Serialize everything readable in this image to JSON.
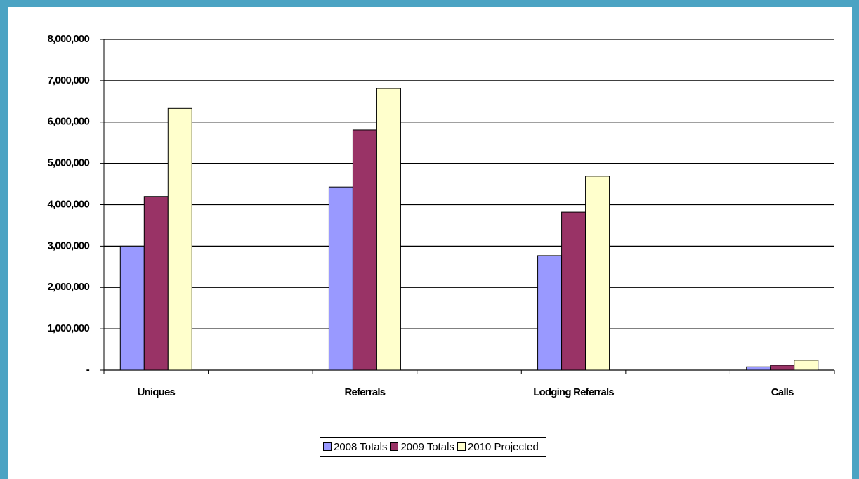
{
  "chart_data": {
    "type": "bar",
    "categories": [
      "Uniques",
      null,
      "Referrals",
      null,
      "Lodging Referrals",
      null,
      "Calls"
    ],
    "series": [
      {
        "name": "2008 Totals",
        "color": "#9999ff",
        "values": [
          3000000,
          null,
          4430000,
          null,
          2770000,
          null,
          80000
        ]
      },
      {
        "name": "2009 Totals",
        "color": "#993366",
        "values": [
          4200000,
          null,
          5810000,
          null,
          3820000,
          null,
          120000
        ]
      },
      {
        "name": "2010 Projected",
        "color": "#ffffcc",
        "values": [
          6330000,
          null,
          6810000,
          null,
          4690000,
          null,
          240000
        ]
      }
    ],
    "ylim": [
      0,
      8000000
    ],
    "yticks": [
      {
        "value": 0,
        "label": "-"
      },
      {
        "value": 1000000,
        "label": "1,000,000"
      },
      {
        "value": 2000000,
        "label": "2,000,000"
      },
      {
        "value": 3000000,
        "label": "3,000,000"
      },
      {
        "value": 4000000,
        "label": "4,000,000"
      },
      {
        "value": 5000000,
        "label": "5,000,000"
      },
      {
        "value": 6000000,
        "label": "6,000,000"
      },
      {
        "value": 7000000,
        "label": "7,000,000"
      },
      {
        "value": 8000000,
        "label": "8,000,000"
      }
    ],
    "grid": true,
    "legend": "bottom"
  }
}
